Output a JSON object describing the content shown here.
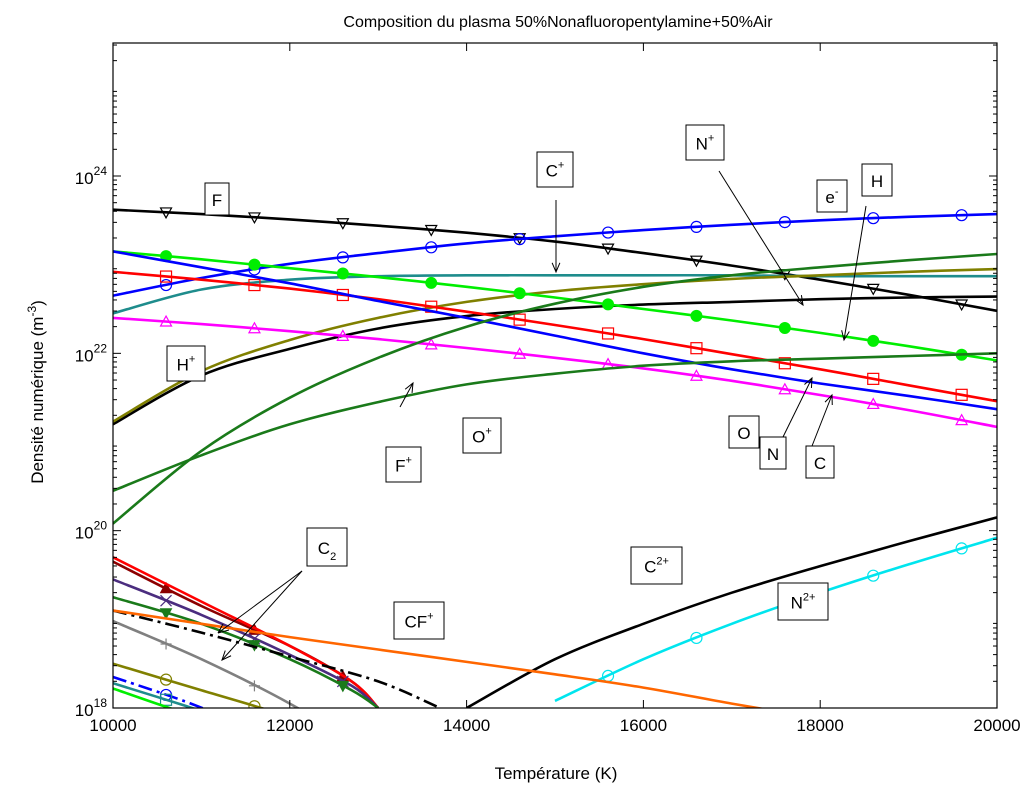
{
  "chart_data": {
    "type": "line",
    "title": "Composition du plasma 50%Nonafluoropentylamine+50%Air",
    "xlabel": "Température (K)",
    "ylabel": {
      "base": "Densité numérique (m",
      "sup": "-3",
      "end": ")"
    },
    "xlim": [
      10000,
      20000
    ],
    "ylim_log10": [
      18,
      25.5
    ],
    "y_scale": "log",
    "grid": false,
    "x_ticks": [
      10000,
      12000,
      14000,
      16000,
      18000,
      20000
    ],
    "x_tick_labels": [
      "10000",
      "12000",
      "14000",
      "16000",
      "18000",
      "20000"
    ],
    "y_ticks": [
      {
        "log": 18,
        "base": "10",
        "sup": "18"
      },
      {
        "log": 20,
        "base": "10",
        "sup": "20"
      },
      {
        "log": 22,
        "base": "10",
        "sup": "22"
      },
      {
        "log": 24,
        "base": "10",
        "sup": "24"
      }
    ],
    "x": [
      10000,
      11000,
      12000,
      13000,
      14000,
      15000,
      16000,
      17000,
      18000,
      19000,
      20000
    ],
    "series": [
      {
        "name": "F",
        "color": "#000000",
        "marker": "triangle-down",
        "log10_y": [
          23.62,
          23.57,
          23.51,
          23.44,
          23.36,
          23.26,
          23.13,
          22.99,
          22.83,
          22.66,
          22.48
        ]
      },
      {
        "name": "e-",
        "color": "#0000ff",
        "marker": "circle",
        "log10_y": [
          22.65,
          22.85,
          23.01,
          23.13,
          23.24,
          23.32,
          23.39,
          23.45,
          23.5,
          23.54,
          23.57
        ]
      },
      {
        "name": "C+",
        "color": "#1e8c8c",
        "marker": "none",
        "log10_y": [
          22.45,
          22.72,
          22.83,
          22.87,
          22.88,
          22.88,
          22.88,
          22.88,
          22.87,
          22.87,
          22.87
        ]
      },
      {
        "name": "N+",
        "color": "#000000",
        "marker": "none",
        "log10_y": [
          21.2,
          21.75,
          22.05,
          22.28,
          22.42,
          22.5,
          22.55,
          22.58,
          22.61,
          22.63,
          22.64
        ]
      },
      {
        "name": "H",
        "color": "#808000",
        "marker": "none",
        "log10_y": [
          21.23,
          21.8,
          22.15,
          22.4,
          22.58,
          22.7,
          22.78,
          22.84,
          22.88,
          22.92,
          22.95
        ]
      },
      {
        "name": "N",
        "color": "#00ee00",
        "marker": "filled-circle",
        "log10_y": [
          23.15,
          23.06,
          22.96,
          22.86,
          22.75,
          22.63,
          22.5,
          22.37,
          22.23,
          22.08,
          21.92
        ]
      },
      {
        "name": "O",
        "color": "#ff0000",
        "marker": "square",
        "log10_y": [
          22.92,
          22.83,
          22.73,
          22.61,
          22.47,
          22.32,
          22.16,
          21.99,
          21.82,
          21.64,
          21.46
        ]
      },
      {
        "name": "C",
        "color": "#0000ff",
        "marker": "none",
        "log10_y": [
          23.15,
          22.97,
          22.79,
          22.59,
          22.4,
          22.2,
          22.0,
          21.82,
          21.66,
          21.52,
          21.37
        ]
      },
      {
        "name": "H+",
        "color": "#ff00ff",
        "marker": "triangle",
        "log10_y": [
          22.4,
          22.33,
          22.25,
          22.16,
          22.06,
          21.95,
          21.83,
          21.69,
          21.53,
          21.36,
          21.17
        ]
      },
      {
        "name": "F+",
        "color": "#1a7a1a",
        "marker": "none",
        "log10_y": [
          20.45,
          20.85,
          21.2,
          21.45,
          21.65,
          21.77,
          21.86,
          21.91,
          21.94,
          21.97,
          22.0
        ]
      },
      {
        "name": "O+",
        "color": "#1a7a1a",
        "marker": "none",
        "log10_y": [
          20.08,
          20.9,
          21.5,
          21.95,
          22.3,
          22.56,
          22.75,
          22.88,
          22.97,
          23.05,
          23.12
        ]
      },
      {
        "name": "C2+",
        "color": "#000000",
        "marker": "none",
        "log10_y": [
          null,
          null,
          null,
          null,
          18.0,
          18.55,
          18.95,
          19.3,
          19.6,
          19.88,
          20.15
        ]
      },
      {
        "name": "N2+",
        "color": "#00e5ee",
        "marker": "circle",
        "log10_y": [
          null,
          null,
          null,
          null,
          null,
          18.08,
          18.55,
          18.95,
          19.3,
          19.62,
          19.92
        ]
      },
      {
        "name": "CF+",
        "color": "#ff6600",
        "marker": "none",
        "log10_y": [
          19.1,
          18.95,
          18.8,
          18.66,
          18.52,
          18.38,
          18.23,
          18.05,
          17.88,
          17.7,
          17.5
        ]
      },
      {
        "name": "C2",
        "color": "#808080",
        "marker": "plus",
        "log10_y": [
          18.98,
          18.55,
          18.05,
          17.45,
          16.8,
          null,
          null,
          null,
          null,
          null,
          null
        ]
      }
    ],
    "extra_curves": [
      {
        "color": "#8b0000",
        "marker": "filled-triangle",
        "x": [
          10000,
          11000,
          12000,
          12700,
          13000
        ],
        "log10_y": [
          19.65,
          19.15,
          18.7,
          18.3,
          18.0
        ]
      },
      {
        "color": "#ff0000",
        "marker": "none",
        "x": [
          10000,
          11000,
          12000,
          12700,
          13000
        ],
        "log10_y": [
          19.7,
          19.2,
          18.7,
          18.3,
          18.0
        ]
      },
      {
        "color": "#4b2d7f",
        "marker": "x",
        "x": [
          10000,
          11000,
          12000,
          12700,
          13000
        ],
        "log10_y": [
          19.45,
          19.05,
          18.6,
          18.25,
          18.0
        ]
      },
      {
        "color": "#1a7a1a",
        "marker": "filled-triangle-down",
        "x": [
          10000,
          11000,
          12000,
          12700,
          13000
        ],
        "log10_y": [
          19.25,
          18.95,
          18.55,
          18.2,
          18.0
        ]
      },
      {
        "color": "#000000",
        "marker": "none",
        "dash": true,
        "x": [
          10000,
          11000,
          12000,
          13000,
          13700
        ],
        "log10_y": [
          19.1,
          18.85,
          18.58,
          18.3,
          18.0
        ]
      },
      {
        "color": "#808000",
        "marker": "circle",
        "x": [
          10000,
          11000,
          12000,
          12500
        ],
        "log10_y": [
          18.5,
          18.2,
          17.9,
          17.7
        ]
      },
      {
        "color": "#0000ff",
        "marker": "circle",
        "dash": true,
        "x": [
          10000,
          10800,
          11500
        ],
        "log10_y": [
          18.35,
          18.08,
          17.8
        ]
      },
      {
        "color": "#1e8c8c",
        "marker": "square",
        "x": [
          10000,
          10800,
          11500
        ],
        "log10_y": [
          18.28,
          18.03,
          17.8
        ]
      },
      {
        "color": "#00ee00",
        "marker": "none",
        "x": [
          10000,
          10700,
          11300
        ],
        "log10_y": [
          18.22,
          17.98,
          17.8
        ]
      }
    ],
    "annotations": [
      {
        "text": "F",
        "sup": ""
      },
      {
        "text": "C",
        "sup": "+"
      },
      {
        "text": "N",
        "sup": "+"
      },
      {
        "text": "e",
        "sup": "-"
      },
      {
        "text": "H",
        "sup": ""
      },
      {
        "text": "H",
        "sup": "+"
      },
      {
        "text": "F",
        "sup": "+"
      },
      {
        "text": "O",
        "sup": "+"
      },
      {
        "text": "O",
        "sup": ""
      },
      {
        "text": "N",
        "sup": ""
      },
      {
        "text": "C",
        "sup": ""
      },
      {
        "text": "C",
        "sub": "2"
      },
      {
        "text": "CF",
        "sup": "+"
      },
      {
        "text": "C",
        "sup": "2+"
      },
      {
        "text": "N",
        "sup": "2+"
      }
    ]
  }
}
